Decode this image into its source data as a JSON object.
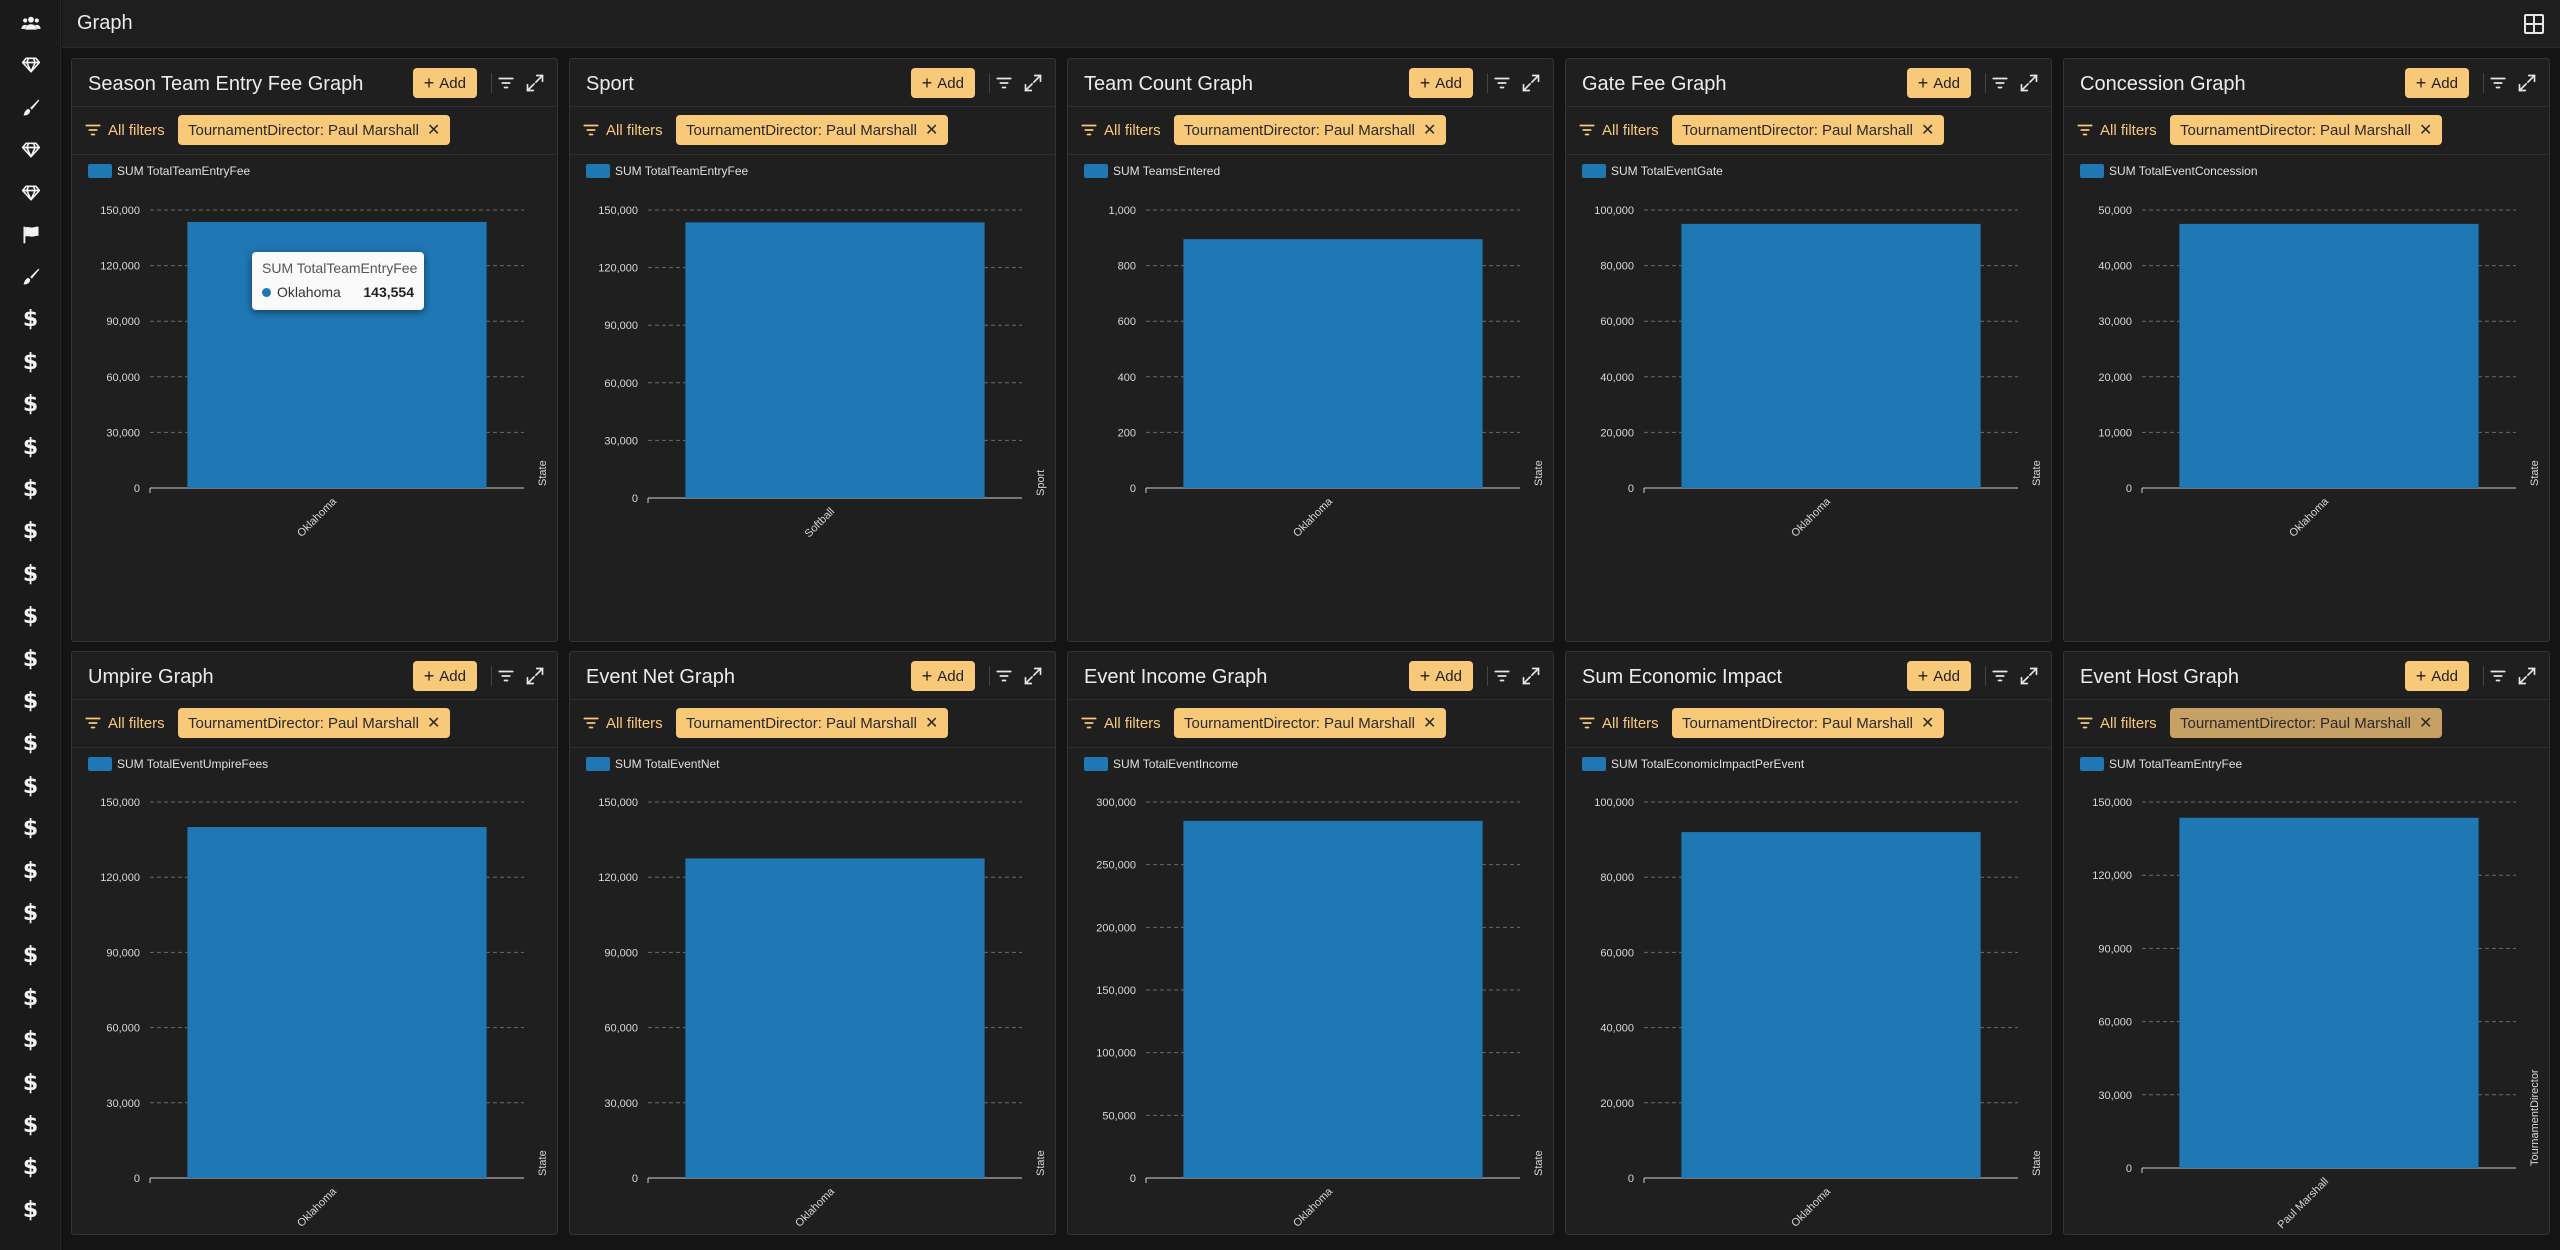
{
  "app": {
    "title": "Graph"
  },
  "sidebar": {
    "icons": [
      "users-icon",
      "diamond-icon",
      "brush-icon",
      "diamond-icon",
      "diamond-icon",
      "flag-icon",
      "brush-icon",
      "dollar-icon",
      "dollar-icon",
      "dollar-icon",
      "dollar-icon",
      "dollar-icon",
      "dollar-icon",
      "dollar-icon",
      "dollar-icon",
      "dollar-icon",
      "dollar-icon",
      "dollar-icon",
      "dollar-icon",
      "dollar-icon",
      "dollar-icon",
      "dollar-icon",
      "dollar-icon",
      "dollar-icon",
      "dollar-icon",
      "dollar-icon",
      "dollar-icon",
      "dollar-icon",
      "dollar-icon"
    ],
    "dollar_glyph": "$"
  },
  "common": {
    "add_label": "Add",
    "all_filters_label": "All filters",
    "filter_chip": "TournamentDirector: Paul Marshall",
    "bar_color": "#1f77b4",
    "accent_color": "#f9c97a"
  },
  "panels": [
    {
      "title": "Season Team Entry Fee Graph",
      "chip_dim": false
    },
    {
      "title": "Sport",
      "chip_dim": false
    },
    {
      "title": "Team Count Graph",
      "chip_dim": false
    },
    {
      "title": "Gate Fee Graph",
      "chip_dim": false
    },
    {
      "title": "Concession Graph",
      "chip_dim": false
    },
    {
      "title": "Umpire Graph",
      "chip_dim": false
    },
    {
      "title": "Event Net Graph",
      "chip_dim": false
    },
    {
      "title": "Event Income Graph",
      "chip_dim": false
    },
    {
      "title": "Sum Economic Impact",
      "chip_dim": false
    },
    {
      "title": "Event Host Graph",
      "chip_dim": true
    }
  ],
  "tooltip": {
    "title": "SUM TotalTeamEntryFee",
    "label": "Oklahoma",
    "value": "143,554"
  },
  "chart_data": [
    {
      "type": "bar",
      "legend": "SUM TotalTeamEntryFee",
      "categories": [
        "Oklahoma"
      ],
      "values": [
        143554
      ],
      "xlabel": "State",
      "ylim": [
        0,
        150000
      ],
      "ticks": [
        0,
        30000,
        60000,
        90000,
        120000,
        150000
      ]
    },
    {
      "type": "bar",
      "legend": "SUM TotalTeamEntryFee",
      "categories": [
        "Softball"
      ],
      "values": [
        143554
      ],
      "xlabel": "Sport",
      "ylim": [
        0,
        150000
      ],
      "ticks": [
        0,
        30000,
        60000,
        90000,
        120000,
        150000
      ]
    },
    {
      "type": "bar",
      "legend": "SUM TeamsEntered",
      "categories": [
        "Oklahoma"
      ],
      "values": [
        895
      ],
      "xlabel": "State",
      "ylim": [
        0,
        1000
      ],
      "ticks": [
        0,
        200,
        400,
        600,
        800,
        1000
      ]
    },
    {
      "type": "bar",
      "legend": "SUM TotalEventGate",
      "categories": [
        "Oklahoma"
      ],
      "values": [
        95000
      ],
      "xlabel": "State",
      "ylim": [
        0,
        100000
      ],
      "ticks": [
        0,
        20000,
        40000,
        60000,
        80000,
        100000
      ]
    },
    {
      "type": "bar",
      "legend": "SUM TotalEventConcession",
      "categories": [
        "Oklahoma"
      ],
      "values": [
        47500
      ],
      "xlabel": "State",
      "ylim": [
        0,
        50000
      ],
      "ticks": [
        0,
        10000,
        20000,
        30000,
        40000,
        50000
      ]
    },
    {
      "type": "bar",
      "legend": "SUM TotalEventUmpireFees",
      "categories": [
        "Oklahoma"
      ],
      "values": [
        140000
      ],
      "xlabel": "State",
      "ylim": [
        0,
        150000
      ],
      "ticks": [
        0,
        30000,
        60000,
        90000,
        120000,
        150000
      ]
    },
    {
      "type": "bar",
      "legend": "SUM TotalEventNet",
      "categories": [
        "Oklahoma"
      ],
      "values": [
        127500
      ],
      "xlabel": "State",
      "ylim": [
        0,
        150000
      ],
      "ticks": [
        0,
        30000,
        60000,
        90000,
        120000,
        150000
      ]
    },
    {
      "type": "bar",
      "legend": "SUM TotalEventIncome",
      "categories": [
        "Oklahoma"
      ],
      "values": [
        285000
      ],
      "xlabel": "State",
      "ylim": [
        0,
        300000
      ],
      "ticks": [
        0,
        50000,
        100000,
        150000,
        200000,
        250000,
        300000
      ]
    },
    {
      "type": "bar",
      "legend": "SUM TotalEconomicImpactPerEvent",
      "categories": [
        "Oklahoma"
      ],
      "values": [
        92000
      ],
      "xlabel": "State",
      "ylim": [
        0,
        100000
      ],
      "ticks": [
        0,
        20000,
        40000,
        60000,
        80000,
        100000
      ]
    },
    {
      "type": "bar",
      "legend": "SUM TotalTeamEntryFee",
      "categories": [
        "Paul Marshall"
      ],
      "values": [
        143554
      ],
      "xlabel": "TournamentDirector",
      "ylim": [
        0,
        150000
      ],
      "ticks": [
        0,
        30000,
        60000,
        90000,
        120000,
        150000
      ]
    }
  ]
}
